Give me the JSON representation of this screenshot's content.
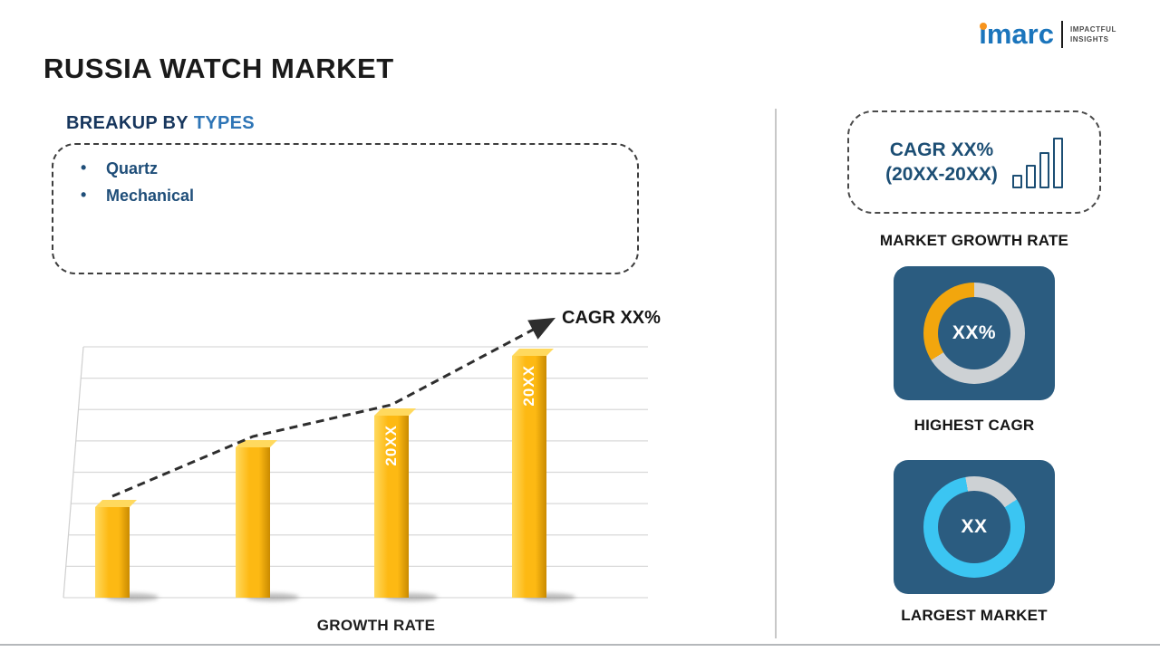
{
  "logo": {
    "brand": "imarc",
    "tagline1": "IMPACTFUL",
    "tagline2": "INSIGHTS"
  },
  "title": "RUSSIA WATCH MARKET",
  "breakup": {
    "heading_prefix": "BREAKUP BY",
    "heading_highlight": "TYPES",
    "items": [
      "Quartz",
      "Mechanical"
    ]
  },
  "chart_data": {
    "type": "bar",
    "categories": [
      "",
      "",
      "20XX",
      "20XX"
    ],
    "values": [
      2.9,
      4.8,
      5.8,
      7.7
    ],
    "ylim": [
      0,
      8
    ],
    "gridline_count": 9,
    "grid": true,
    "title": "",
    "xlabel": "GROWTH RATE",
    "ylabel": "",
    "bar_color": "#FDB913",
    "bar_labels_on_bars": [
      "20XX",
      "20XX"
    ],
    "trend": {
      "label": "CAGR XX%",
      "style": "dashed-arrow",
      "direction": "up"
    }
  },
  "right_panel": {
    "cagr_box": {
      "line1": "CAGR XX%",
      "line2": "(20XX-20XX)"
    },
    "market_growth_label": "MARKET GROWTH RATE",
    "highest_cagr": {
      "value": "XX%",
      "label": "HIGHEST CAGR",
      "ring_color": "#F2A60D"
    },
    "largest_market": {
      "value": "XX",
      "label": "LARGEST MARKET",
      "ring_color": "#3BC5F2"
    }
  },
  "colors": {
    "navy": "#17365D",
    "blue": "#2E75B6",
    "textNavy": "#1C4E74",
    "gold": "#FDB913",
    "goldLight": "#FFD95E",
    "goldDark": "#C98A00",
    "amber": "#F2A60D",
    "cyan": "#3BC5F2",
    "track": "#CDD1D4",
    "tile": "#2B5C80",
    "logoBlue": "#1B75BC",
    "logoOrange": "#F7941D"
  }
}
